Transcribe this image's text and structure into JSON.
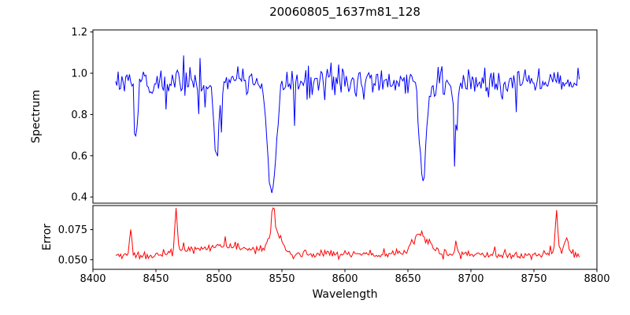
{
  "chart": {
    "title": "20060805_1637m81_128",
    "xlabel": "Wavelength",
    "spectrum_ylabel": "Spectrum",
    "error_ylabel": "Error"
  },
  "axes": {
    "xticks": [
      "8400",
      "8450",
      "8500",
      "8550",
      "8600",
      "8650",
      "8700",
      "8750",
      "8800"
    ],
    "xtick_values": [
      8400,
      8450,
      8500,
      8550,
      8600,
      8650,
      8700,
      8750,
      8800
    ]
  },
  "chart_data": [
    {
      "subplot": "spectrum",
      "type": "line",
      "title": "20060805_1637m81_128",
      "ylabel": "Spectrum",
      "series_color": "#0000ff",
      "xlim": [
        8400,
        8800
      ],
      "ylim": [
        0.37,
        1.21
      ],
      "x_start": 8418,
      "x_end": 8786,
      "x_step": 1,
      "yticks": [
        "0.4",
        "0.6",
        "0.8",
        "1.0",
        "1.2"
      ],
      "ytick_values": [
        0.4,
        0.6,
        0.8,
        1.0,
        1.2
      ],
      "continuum": 0.955,
      "noise_sigma": 0.034,
      "dip_probability": 0.03,
      "absorption_lines": [
        {
          "center": 8434,
          "depth": 0.3,
          "width": 1.2
        },
        {
          "center": 8498,
          "depth": 0.34,
          "width": 2.2
        },
        {
          "center": 8542,
          "depth": 0.56,
          "width": 3.2
        },
        {
          "center": 8662,
          "depth": 0.47,
          "width": 2.6
        },
        {
          "center": 8688,
          "depth": 0.24,
          "width": 1.6
        }
      ]
    },
    {
      "subplot": "error",
      "type": "line",
      "ylabel": "Error",
      "series_color": "#ff0000",
      "xlim": [
        8400,
        8800
      ],
      "ylim": [
        0.042,
        0.095
      ],
      "yticks": [
        "0.050",
        "0.075"
      ],
      "ytick_values": [
        0.05,
        0.075
      ],
      "baseline": 0.0525,
      "noise_sigma": 0.0016,
      "bumps": [
        {
          "center": 8500,
          "height": 0.007,
          "width": 25
        },
        {
          "center": 8545,
          "height": 0.018,
          "width": 5
        },
        {
          "center": 8600,
          "height": 0.002,
          "width": 120
        },
        {
          "center": 8660,
          "height": 0.016,
          "width": 7
        },
        {
          "center": 8770,
          "height": 0.004,
          "width": 10
        }
      ],
      "spikes": [
        {
          "center": 8430,
          "height": 0.021,
          "width": 0.9
        },
        {
          "center": 8466,
          "height": 0.036,
          "width": 0.9
        },
        {
          "center": 8543,
          "height": 0.03,
          "width": 1.0
        },
        {
          "center": 8688,
          "height": 0.012,
          "width": 0.8
        },
        {
          "center": 8768,
          "height": 0.034,
          "width": 0.9
        },
        {
          "center": 8776,
          "height": 0.013,
          "width": 1.2
        }
      ]
    }
  ]
}
